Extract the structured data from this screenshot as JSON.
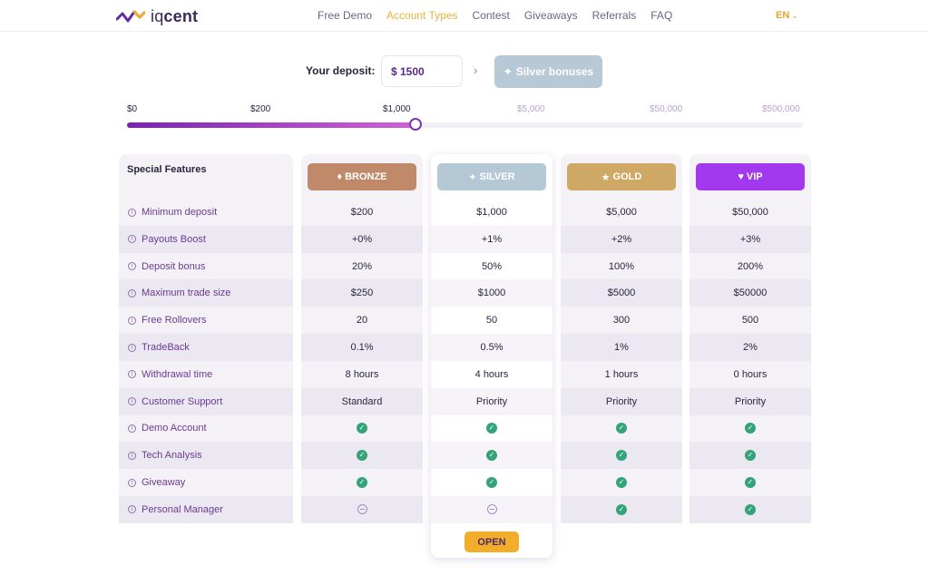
{
  "header": {
    "logo_text_light": "iq",
    "logo_text_bold": "cent",
    "nav": [
      "Free Demo",
      "Account Types",
      "Contest",
      "Giveaways",
      "Referrals",
      "FAQ"
    ],
    "nav_active": "Account Types",
    "lang": "EN"
  },
  "deposit": {
    "label": "Your deposit:",
    "value": "$ 1500",
    "bonus_button": "Silver bonuses",
    "bonus_icon": "sparkle-icon"
  },
  "slider": {
    "ticks": [
      "$0",
      "$200",
      "$1,000",
      "$5,000",
      "$50,000",
      "$500,000"
    ],
    "active_ticks": 3,
    "knob_at_tick_index": 2,
    "colors": {
      "fill_start": "#7b22b2",
      "fill_end": "#d062d8"
    }
  },
  "table": {
    "features_title": "Special Features",
    "features": [
      "Minimum deposit",
      "Payouts Boost",
      "Deposit bonus",
      "Maximum trade size",
      "Free Rollovers",
      "TradeBack",
      "Withdrawal time",
      "Customer Support",
      "Demo Account",
      "Tech Analysis",
      "Giveaway",
      "Personal Manager"
    ],
    "tiers": [
      {
        "name": "BRONZE",
        "icon": "diamond-icon",
        "color": "#c08a6a",
        "values": [
          "$200",
          "+0%",
          "20%",
          "$250",
          "20",
          "0.1%",
          "8 hours",
          "Standard",
          "check",
          "check",
          "check",
          "minus"
        ]
      },
      {
        "name": "SILVER",
        "icon": "sparkle-icon",
        "color": "#b5c8d6",
        "values": [
          "$1,000",
          "+1%",
          "50%",
          "$1000",
          "50",
          "0.5%",
          "4 hours",
          "Priority",
          "check",
          "check",
          "check",
          "minus"
        ],
        "open_label": "OPEN"
      },
      {
        "name": "GOLD",
        "icon": "star-icon",
        "color": "#cfa865",
        "values": [
          "$5,000",
          "+2%",
          "100%",
          "$5000",
          "300",
          "1%",
          "1 hours",
          "Priority",
          "check",
          "check",
          "check",
          "check"
        ]
      },
      {
        "name": "VIP",
        "icon": "heart-icon",
        "color": "#a239ef",
        "values": [
          "$50,000",
          "+3%",
          "200%",
          "$50000",
          "500",
          "2%",
          "0 hours",
          "Priority",
          "check",
          "check",
          "check",
          "check"
        ]
      }
    ]
  }
}
